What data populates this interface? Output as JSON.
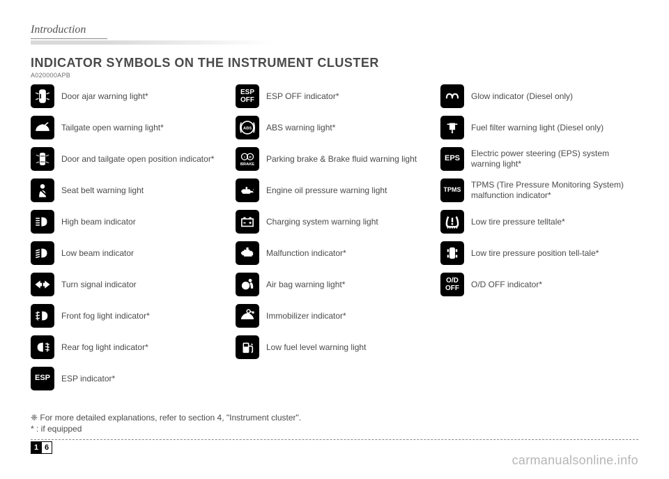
{
  "chapter": "Introduction",
  "title": "INDICATOR SYMBOLS ON THE INSTRUMENT CLUSTER",
  "code": "A020000APB",
  "columns": [
    [
      {
        "name": "door-ajar",
        "label": "Door ajar warning light*"
      },
      {
        "name": "tailgate",
        "label": "Tailgate open warning light*"
      },
      {
        "name": "door-tailgate-pos",
        "label": "Door and tailgate open position indicator*"
      },
      {
        "name": "seatbelt",
        "label": "Seat belt warning light"
      },
      {
        "name": "high-beam",
        "label": "High beam indicator"
      },
      {
        "name": "low-beam",
        "label": "Low beam indicator"
      },
      {
        "name": "turn-signal",
        "label": "Turn signal indicator"
      },
      {
        "name": "front-fog",
        "label": "Front fog light indicator*"
      },
      {
        "name": "rear-fog",
        "label": "Rear fog light indicator*"
      },
      {
        "name": "esp",
        "text": "ESP",
        "label": "ESP indicator*"
      }
    ],
    [
      {
        "name": "esp-off",
        "text": "ESP\nOFF",
        "label": "ESP OFF indicator*"
      },
      {
        "name": "abs",
        "text": "ABS",
        "circle": true,
        "label": "ABS warning light*"
      },
      {
        "name": "brake",
        "text": "①ⓟ\nBRAKE",
        "label": "Parking brake & Brake fluid warning light"
      },
      {
        "name": "oil",
        "label": "Engine oil pressure warning light"
      },
      {
        "name": "battery",
        "label": "Charging system warning light"
      },
      {
        "name": "malfunction",
        "label": "Malfunction indicator*"
      },
      {
        "name": "airbag",
        "label": "Air bag warning light*"
      },
      {
        "name": "immobilizer",
        "label": "Immobilizer indicator*"
      },
      {
        "name": "fuel",
        "label": "Low fuel level warning light"
      }
    ],
    [
      {
        "name": "glow",
        "label": "Glow indicator (Diesel only)"
      },
      {
        "name": "fuel-filter",
        "label": "Fuel filter warning light (Diesel only)"
      },
      {
        "name": "eps",
        "text": "EPS",
        "label": "Electric power steering (EPS) system warning light*"
      },
      {
        "name": "tpms",
        "text": "TPMS",
        "label": "TPMS (Tire Pressure Monitoring System) malfunction indicator*"
      },
      {
        "name": "low-tire",
        "label": "Low tire pressure telltale*"
      },
      {
        "name": "low-tire-pos",
        "label": "Low tire pressure position tell-tale*"
      },
      {
        "name": "od-off",
        "text": "O/D\nOFF",
        "label": "O/D OFF indicator*"
      }
    ]
  ],
  "note1": "❈ For more detailed explanations, refer to section 4, \"Instrument cluster\".",
  "note2": "* : if equipped",
  "page_a": "1",
  "page_b": "6",
  "watermark": "carmanualsonline.info"
}
